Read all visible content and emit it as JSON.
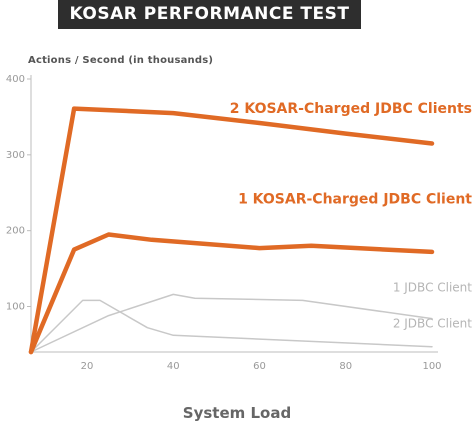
{
  "chart_data": {
    "type": "line",
    "title": "KOSAR PERFORMANCE TEST",
    "xlabel": "System Load",
    "ylabel": "Actions / Second (in thousands)",
    "xlim": [
      7,
      100
    ],
    "ylim": [
      40,
      400
    ],
    "xticks": [
      "20",
      "40",
      "60",
      "80",
      "100"
    ],
    "yticks": [
      "100",
      "200",
      "300",
      "400"
    ],
    "grid": false,
    "series": [
      {
        "name": "2 KOSAR-Charged JDBC Clients",
        "color": "#e06a25",
        "width": 4.5,
        "x": [
          7,
          17,
          40,
          60,
          80,
          100
        ],
        "y": [
          40,
          361,
          355,
          342,
          328,
          315
        ]
      },
      {
        "name": "1 KOSAR-Charged JDBC Client",
        "color": "#e06a25",
        "width": 4.5,
        "x": [
          7,
          17,
          25,
          35,
          60,
          72,
          100
        ],
        "y": [
          40,
          175,
          195,
          188,
          177,
          180,
          172
        ]
      },
      {
        "name": "1 JDBC Client",
        "color": "#c8c8c8",
        "width": 1.5,
        "x": [
          7,
          25,
          40,
          45,
          70,
          100
        ],
        "y": [
          40,
          88,
          116,
          111,
          108,
          84
        ]
      },
      {
        "name": "2 JDBC Client",
        "color": "#c8c8c8",
        "width": 1.5,
        "x": [
          7,
          19,
          23,
          34,
          40,
          100
        ],
        "y": [
          40,
          108,
          108,
          72,
          62,
          47
        ]
      }
    ],
    "legend_labels": [
      {
        "text": "2 KOSAR-Charged JDBC Clients",
        "color": "#e06a25",
        "weight": "bold",
        "size": 14,
        "xv": 43,
        "yv": 100
      },
      {
        "text": "1 KOSAR-Charged JDBC Client",
        "color": "#e06a25",
        "weight": "bold",
        "size": 14,
        "xv": 48,
        "yv": 190
      },
      {
        "text": "1 JDBC Client",
        "color": "#b5b5b5",
        "weight": "normal",
        "size": 12,
        "xv": 77,
        "yv": 120
      },
      {
        "text": "2 JDBC Client",
        "color": "#b5b5b5",
        "weight": "normal",
        "size": 12,
        "xv": 77,
        "yv": 72
      }
    ]
  }
}
